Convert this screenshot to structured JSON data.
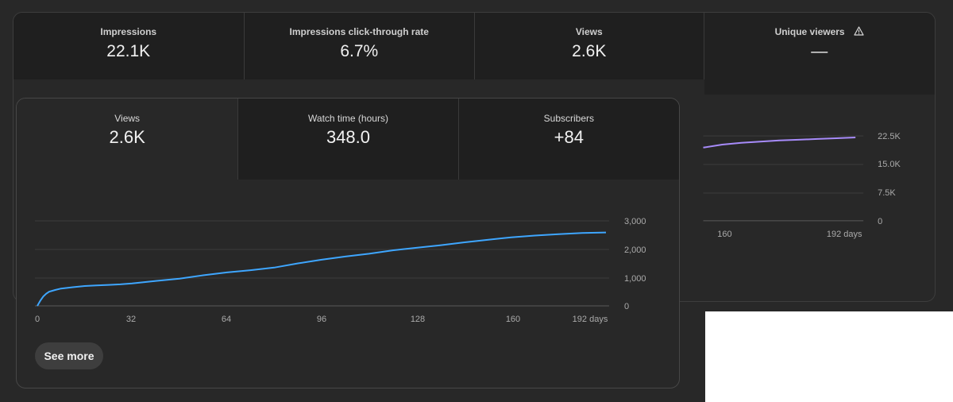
{
  "back_card": {
    "tabs": [
      {
        "label": "Impressions",
        "value": "22.1K"
      },
      {
        "label": "Impressions click-through rate",
        "value": "6.7%"
      },
      {
        "label": "Views",
        "value": "2.6K"
      },
      {
        "label": "Unique viewers",
        "value": "—",
        "icon": "warning-icon"
      }
    ]
  },
  "front_card": {
    "tabs": [
      {
        "label": "Views",
        "value": "2.6K"
      },
      {
        "label": "Watch time (hours)",
        "value": "348.0"
      },
      {
        "label": "Subscribers",
        "value": "+84"
      }
    ],
    "see_more_label": "See more"
  },
  "chart_data": [
    {
      "type": "line",
      "x_unit": "days",
      "x_ticks": [
        "160",
        "192 days"
      ],
      "y_ticks": [
        "22.5K",
        "15.0K",
        "7.5K",
        "0"
      ],
      "ylim": [
        0,
        22500
      ],
      "series": [
        {
          "color": "#a78bfa",
          "x": [
            160,
            165,
            170,
            175,
            180,
            185,
            190,
            195,
            200
          ],
          "y": [
            19400,
            20200,
            20700,
            21000,
            21300,
            21500,
            21700,
            21900,
            22100
          ]
        }
      ]
    },
    {
      "type": "line",
      "x_unit": "days",
      "x_ticks": [
        "0",
        "32",
        "64",
        "96",
        "128",
        "160",
        "192 days"
      ],
      "y_ticks": [
        "3,000",
        "2,000",
        "1,000",
        "0"
      ],
      "xlim": [
        0,
        192
      ],
      "ylim": [
        0,
        3000
      ],
      "series": [
        {
          "color": "#3ea6ff",
          "x": [
            0,
            1,
            2,
            3,
            4,
            6,
            8,
            12,
            16,
            20,
            24,
            28,
            32,
            40,
            48,
            56,
            64,
            72,
            80,
            88,
            96,
            104,
            112,
            120,
            128,
            136,
            144,
            152,
            160,
            168,
            176,
            184,
            192
          ],
          "y": [
            0,
            180,
            330,
            430,
            500,
            560,
            610,
            660,
            700,
            720,
            740,
            760,
            790,
            880,
            960,
            1080,
            1180,
            1260,
            1350,
            1500,
            1630,
            1740,
            1840,
            1960,
            2050,
            2140,
            2240,
            2330,
            2420,
            2480,
            2530,
            2570,
            2590
          ]
        }
      ]
    }
  ]
}
